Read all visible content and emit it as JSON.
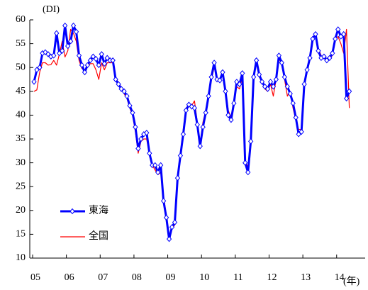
{
  "chart_data": {
    "type": "line",
    "unit_label": "(DI)",
    "x_unit": "(年)",
    "categories": [
      "05",
      null,
      null,
      null,
      null,
      null,
      null,
      null,
      null,
      null,
      null,
      null,
      "06",
      null,
      null,
      null,
      null,
      null,
      null,
      null,
      null,
      null,
      null,
      null,
      "07",
      null,
      null,
      null,
      null,
      null,
      null,
      null,
      null,
      null,
      null,
      null,
      "08",
      null,
      null,
      null,
      null,
      null,
      null,
      null,
      null,
      null,
      null,
      null,
      "09",
      null,
      null,
      null,
      null,
      null,
      null,
      null,
      null,
      null,
      null,
      null,
      "10",
      null,
      null,
      null,
      null,
      null,
      null,
      null,
      null,
      null,
      null,
      null,
      "11",
      null,
      null,
      null,
      null,
      null,
      null,
      null,
      null,
      null,
      null,
      null,
      "12",
      null,
      null,
      null,
      null,
      null,
      null,
      null,
      null,
      null,
      null,
      null,
      "13",
      null,
      null,
      null,
      null,
      null,
      null,
      null,
      null,
      null,
      null,
      null,
      "14",
      null,
      null,
      null,
      null
    ],
    "series": [
      {
        "name": "東海",
        "color": "#0000ff",
        "values": [
          47,
          49.5,
          50,
          53,
          53.2,
          52.8,
          52.3,
          52.5,
          57.2,
          53,
          53.5,
          58.8,
          54.5,
          55.5,
          58.8,
          57.5,
          52.5,
          50.5,
          49,
          50.5,
          51.5,
          52.3,
          51.8,
          50.5,
          52.8,
          50.8,
          52,
          51.5,
          51.5,
          47.5,
          46.5,
          45.5,
          45,
          44,
          42,
          40.5,
          37.5,
          33,
          35,
          36,
          36.3,
          32,
          29.5,
          29.5,
          28,
          29.5,
          22,
          18.5,
          14,
          16.5,
          17.5,
          26.8,
          31.5,
          36,
          41,
          42.2,
          41.8,
          41.5,
          38,
          33.5,
          37.5,
          40.5,
          44,
          48,
          51,
          47.5,
          47.3,
          49,
          45,
          40,
          39,
          42.5,
          47,
          46.5,
          48.8,
          30,
          28,
          34.5,
          48,
          51.5,
          48.5,
          47,
          46,
          45.5,
          47,
          46,
          47.5,
          52.5,
          51,
          48,
          46,
          44.5,
          42.5,
          39.5,
          36,
          36.5,
          46.5,
          49.5,
          52,
          56,
          57,
          53.5,
          52,
          52.3,
          51.5,
          52,
          53,
          56,
          58,
          56.5,
          57,
          43.5,
          45
        ]
      },
      {
        "name": "全国",
        "color": "#ff0000",
        "values": [
          45,
          45.3,
          49,
          51,
          51,
          50.5,
          50.6,
          51.5,
          50.5,
          52.8,
          55.5,
          52.2,
          53.5,
          58,
          57.2,
          55.5,
          51.5,
          49.8,
          49.5,
          50.2,
          50.8,
          50.8,
          49.5,
          47.5,
          51,
          49.5,
          51,
          51,
          51,
          47.8,
          46.8,
          45.8,
          44.5,
          43.5,
          41.5,
          40,
          36.5,
          32,
          34.5,
          35,
          35,
          31.8,
          29.5,
          28.5,
          27.5,
          28,
          23,
          19,
          14.5,
          16,
          17,
          26,
          32,
          37,
          41.5,
          42,
          42,
          43,
          38.5,
          34,
          38.5,
          41,
          44,
          47.5,
          50,
          47.8,
          47.5,
          48.8,
          45.5,
          41,
          39.5,
          43,
          46,
          45.5,
          48,
          30.5,
          29,
          35.5,
          48.5,
          51,
          48,
          47,
          45.5,
          45,
          46.5,
          44,
          47.5,
          52,
          50.5,
          47.5,
          44,
          45,
          41.5,
          39,
          37,
          37,
          46,
          49,
          52.5,
          56.5,
          56.5,
          54,
          52.5,
          52,
          51.5,
          52,
          52.5,
          55.5,
          56.5,
          55,
          53,
          58,
          41.5
        ]
      }
    ],
    "ylim": [
      10,
      60
    ],
    "yticks": [
      10,
      15,
      20,
      25,
      30,
      35,
      40,
      45,
      50,
      55,
      60
    ],
    "legend": "lower left"
  }
}
